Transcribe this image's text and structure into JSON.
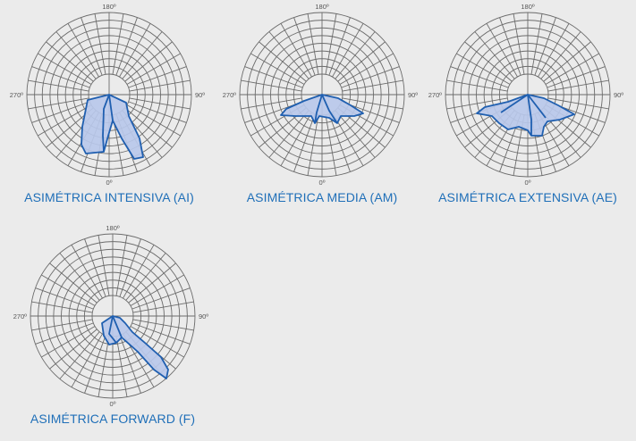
{
  "colors": {
    "background": "#ebebeb",
    "grid": "#6b6b6b",
    "curve_stroke": "#1f5fb0",
    "curve_fill": "#b8c8ea",
    "caption": "#1f6fb8"
  },
  "axis_labels": {
    "top": "180º",
    "right": "90º",
    "bottom": "0º",
    "left": "270º"
  },
  "diagrams": [
    {
      "id": "ai",
      "caption": "ASIMÉTRICA INTENSIVA (AI)"
    },
    {
      "id": "am",
      "caption": "ASIMÉTRICA MEDIA (AM)"
    },
    {
      "id": "ae",
      "caption": "ASIMÉTRICA EXTENSIVA (AE)"
    },
    {
      "id": "f",
      "caption": "ASIMÉTRICA FORWARD (F)"
    }
  ]
}
